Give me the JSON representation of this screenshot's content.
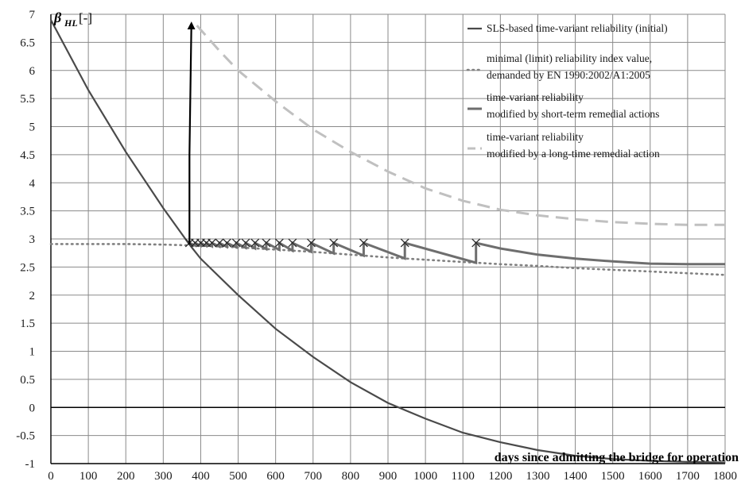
{
  "chart_data": {
    "type": "line",
    "ylabel_symbol": "β",
    "ylabel_subscript": "HL",
    "ylabel_unit": "[-]",
    "xlabel": "days since admitting  the bridge for operation",
    "xlim": [
      0,
      1800
    ],
    "ylim": [
      -1,
      7
    ],
    "x_ticks": [
      0,
      100,
      200,
      300,
      400,
      500,
      600,
      700,
      800,
      900,
      1000,
      1100,
      1200,
      1300,
      1400,
      1500,
      1600,
      1700,
      1800
    ],
    "y_ticks": [
      7,
      6.5,
      6,
      5.5,
      5,
      4.5,
      4,
      3.5,
      3,
      2.5,
      2,
      1.5,
      1,
      0.5,
      0,
      -0.5,
      -1
    ],
    "grid": true,
    "legend_position": "top-right",
    "legend": [
      {
        "line1": "SLS-based time-variant reliability (initial)",
        "line2": "",
        "style": "solid-dark"
      },
      {
        "line1": "minimal (limit) reliability index value,",
        "line2": "demanded by EN 1990:2002/A1:2005",
        "style": "dotted"
      },
      {
        "line1": "time-variant reliability",
        "line2": "modified by short-term remedial actions",
        "style": "solid-medium"
      },
      {
        "line1": "time-variant reliability",
        "line2": "modified by a  long-time remedial action",
        "style": "dashed-light"
      }
    ],
    "series": [
      {
        "key": "sls_initial",
        "x": [
          0,
          100,
          200,
          300,
          370,
          400,
          500,
          600,
          700,
          800,
          900,
          1000,
          1100,
          1200,
          1300,
          1400,
          1500,
          1600,
          1700,
          1800
        ],
        "y": [
          6.9,
          5.65,
          4.55,
          3.55,
          2.9,
          2.65,
          2.0,
          1.4,
          0.9,
          0.45,
          0.08,
          -0.2,
          -0.45,
          -0.62,
          -0.76,
          -0.86,
          -0.92,
          -0.95,
          -0.97,
          -0.98
        ]
      },
      {
        "key": "limit_index",
        "x": [
          0,
          100,
          200,
          300,
          400,
          500,
          600,
          700,
          800,
          900,
          1000,
          1100,
          1200,
          1300,
          1400,
          1500,
          1600,
          1700,
          1800
        ],
        "y": [
          2.91,
          2.91,
          2.91,
          2.9,
          2.88,
          2.85,
          2.81,
          2.77,
          2.72,
          2.67,
          2.63,
          2.59,
          2.55,
          2.52,
          2.48,
          2.45,
          2.42,
          2.39,
          2.36
        ]
      },
      {
        "key": "short_term",
        "x_repairs": [
          370,
          385,
          400,
          415,
          430,
          450,
          470,
          495,
          520,
          545,
          575,
          610,
          645,
          695,
          755,
          835,
          945,
          1135
        ],
        "y_repaired": 2.93,
        "decay_to_limit": true,
        "tail_x": [
          1135,
          1200,
          1300,
          1400,
          1500,
          1600,
          1700,
          1800
        ],
        "tail_y": [
          2.93,
          2.83,
          2.72,
          2.65,
          2.6,
          2.56,
          2.55,
          2.55
        ]
      },
      {
        "key": "long_time",
        "x": [
          390,
          450,
          500,
          600,
          700,
          800,
          900,
          1000,
          1100,
          1200,
          1300,
          1400,
          1500,
          1600,
          1700,
          1800
        ],
        "y": [
          6.8,
          6.35,
          6.0,
          5.45,
          4.95,
          4.55,
          4.2,
          3.9,
          3.68,
          3.52,
          3.42,
          3.35,
          3.3,
          3.27,
          3.25,
          3.25
        ]
      },
      {
        "key": "jump_arrow",
        "x": [
          370,
          370,
          375
        ],
        "y": [
          2.9,
          4.5,
          6.8
        ]
      }
    ]
  }
}
